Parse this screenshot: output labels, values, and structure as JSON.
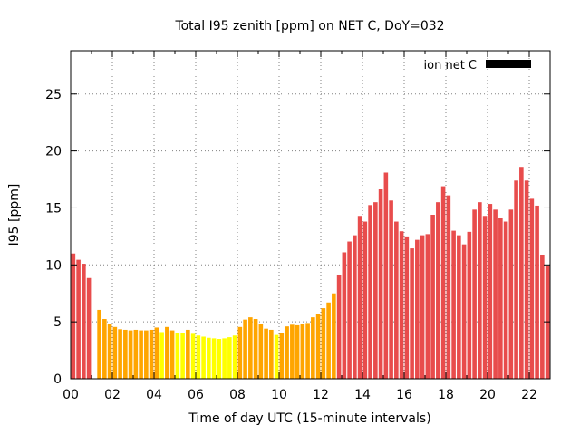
{
  "chart": {
    "title": "Total I95 zenith [ppm] on NET C, DoY=032",
    "xlabel": "Time of day UTC (15-minute intervals)",
    "ylabel": "I95 [ppm]",
    "legend": {
      "label": "ion net C",
      "swatch_color": "#000000"
    }
  },
  "chart_data": {
    "type": "bar",
    "title": "Total I95 zenith [ppm] on NET C, DoY=032",
    "xlabel": "Time of day UTC (15-minute intervals)",
    "ylabel": "I95 [ppm]",
    "series_name": "ion net C",
    "x_hours": 23,
    "bin_minutes": 15,
    "ylim": [
      0,
      28.8
    ],
    "yticks": [
      0,
      5,
      10,
      15,
      20,
      25
    ],
    "xticks_labeled": [
      "00",
      "02",
      "04",
      "06",
      "08",
      "10",
      "12",
      "14",
      "16",
      "18",
      "20",
      "22"
    ],
    "grid": true,
    "legend_position": "top-right",
    "palette": {
      "Y": "#ffff00",
      "O": "#ffa500",
      "R": "#e84c4c",
      "frame": "#000000",
      "grid": "#808080"
    },
    "columns": [
      "time",
      "value",
      "color_key"
    ],
    "points": [
      [
        "00:00",
        11.0,
        "R"
      ],
      [
        "00:15",
        10.45,
        "R"
      ],
      [
        "00:30",
        10.1,
        "R"
      ],
      [
        "00:45",
        8.85,
        "R"
      ],
      [
        "01:00",
        null,
        "none"
      ],
      [
        "01:15",
        6.05,
        "O"
      ],
      [
        "01:30",
        5.25,
        "O"
      ],
      [
        "01:45",
        4.8,
        "O"
      ],
      [
        "02:00",
        4.55,
        "O"
      ],
      [
        "02:15",
        4.35,
        "O"
      ],
      [
        "02:30",
        4.3,
        "O"
      ],
      [
        "02:45",
        4.25,
        "O"
      ],
      [
        "03:00",
        4.3,
        "O"
      ],
      [
        "03:15",
        4.25,
        "O"
      ],
      [
        "03:30",
        4.25,
        "O"
      ],
      [
        "03:45",
        4.3,
        "O"
      ],
      [
        "04:00",
        4.5,
        "O"
      ],
      [
        "04:15",
        4.1,
        "Y"
      ],
      [
        "04:30",
        4.55,
        "O"
      ],
      [
        "04:45",
        4.25,
        "O"
      ],
      [
        "05:00",
        4.0,
        "Y"
      ],
      [
        "05:15",
        4.05,
        "Y"
      ],
      [
        "05:30",
        4.3,
        "O"
      ],
      [
        "05:45",
        3.95,
        "Y"
      ],
      [
        "06:00",
        3.8,
        "Y"
      ],
      [
        "06:15",
        3.7,
        "Y"
      ],
      [
        "06:30",
        3.6,
        "Y"
      ],
      [
        "06:45",
        3.55,
        "Y"
      ],
      [
        "07:00",
        3.5,
        "Y"
      ],
      [
        "07:15",
        3.55,
        "Y"
      ],
      [
        "07:30",
        3.65,
        "Y"
      ],
      [
        "07:45",
        3.8,
        "Y"
      ],
      [
        "08:00",
        4.55,
        "O"
      ],
      [
        "08:15",
        5.2,
        "O"
      ],
      [
        "08:30",
        5.4,
        "O"
      ],
      [
        "08:45",
        5.25,
        "O"
      ],
      [
        "09:00",
        4.85,
        "O"
      ],
      [
        "09:15",
        4.4,
        "O"
      ],
      [
        "09:30",
        4.3,
        "O"
      ],
      [
        "09:45",
        3.85,
        "Y"
      ],
      [
        "10:00",
        4.0,
        "O"
      ],
      [
        "10:15",
        4.6,
        "O"
      ],
      [
        "10:30",
        4.75,
        "O"
      ],
      [
        "10:45",
        4.7,
        "O"
      ],
      [
        "11:00",
        4.85,
        "O"
      ],
      [
        "11:15",
        4.9,
        "O"
      ],
      [
        "11:30",
        5.4,
        "O"
      ],
      [
        "11:45",
        5.7,
        "O"
      ],
      [
        "12:00",
        6.2,
        "O"
      ],
      [
        "12:15",
        6.7,
        "O"
      ],
      [
        "12:30",
        7.5,
        "O"
      ],
      [
        "12:45",
        9.15,
        "R"
      ],
      [
        "13:00",
        11.1,
        "R"
      ],
      [
        "13:15",
        12.05,
        "R"
      ],
      [
        "13:30",
        12.6,
        "R"
      ],
      [
        "13:45",
        14.3,
        "R"
      ],
      [
        "14:00",
        13.8,
        "R"
      ],
      [
        "14:15",
        15.25,
        "R"
      ],
      [
        "14:30",
        15.5,
        "R"
      ],
      [
        "14:45",
        16.7,
        "R"
      ],
      [
        "15:00",
        18.1,
        "R"
      ],
      [
        "15:15",
        15.65,
        "R"
      ],
      [
        "15:30",
        13.8,
        "R"
      ],
      [
        "15:45",
        12.95,
        "R"
      ],
      [
        "16:00",
        12.5,
        "R"
      ],
      [
        "16:15",
        11.45,
        "R"
      ],
      [
        "16:30",
        12.2,
        "R"
      ],
      [
        "16:45",
        12.6,
        "R"
      ],
      [
        "17:00",
        12.7,
        "R"
      ],
      [
        "17:15",
        14.4,
        "R"
      ],
      [
        "17:30",
        15.5,
        "R"
      ],
      [
        "17:45",
        16.9,
        "R"
      ],
      [
        "18:00",
        16.1,
        "R"
      ],
      [
        "18:15",
        13.0,
        "R"
      ],
      [
        "18:30",
        12.6,
        "R"
      ],
      [
        "18:45",
        11.8,
        "R"
      ],
      [
        "19:00",
        12.9,
        "R"
      ],
      [
        "19:15",
        14.85,
        "R"
      ],
      [
        "19:30",
        15.5,
        "R"
      ],
      [
        "19:45",
        14.3,
        "R"
      ],
      [
        "20:00",
        15.35,
        "R"
      ],
      [
        "20:15",
        14.85,
        "R"
      ],
      [
        "20:30",
        14.1,
        "R"
      ],
      [
        "20:45",
        13.8,
        "R"
      ],
      [
        "21:00",
        14.85,
        "R"
      ],
      [
        "21:15",
        17.4,
        "R"
      ],
      [
        "21:30",
        18.6,
        "R"
      ],
      [
        "21:45",
        17.4,
        "R"
      ],
      [
        "22:00",
        15.8,
        "R"
      ],
      [
        "22:15",
        15.2,
        "R"
      ],
      [
        "22:30",
        10.9,
        "R"
      ],
      [
        "22:45",
        9.95,
        "R"
      ]
    ]
  }
}
